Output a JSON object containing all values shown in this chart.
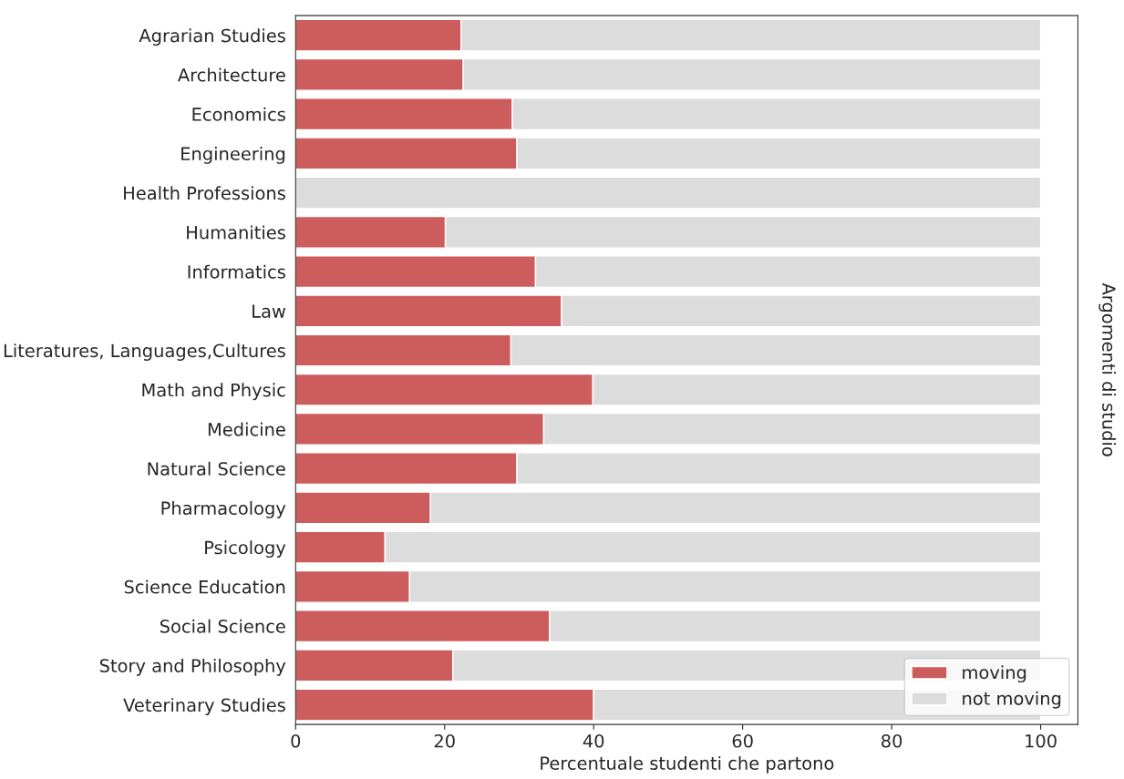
{
  "chart_data": {
    "type": "bar",
    "orientation": "horizontal",
    "stacked": true,
    "xlabel": "Percentuale studenti che partono",
    "ylabel": "Argomenti di studio",
    "categories": [
      "Agrarian Studies",
      "Architecture",
      "Economics",
      "Engineering",
      "Health Professions",
      "Humanities",
      "Informatics",
      "Law",
      "Literatures, Languages,Cultures",
      "Math and Physic",
      "Medicine",
      "Natural Science",
      "Pharmacology",
      "Psicology",
      "Science Education",
      "Social Science",
      "Story and Philosophy",
      "Veterinary Studies"
    ],
    "series": [
      {
        "name": "moving",
        "color": "#cd5c5c",
        "values": [
          22.2,
          22.5,
          29.1,
          29.7,
          0,
          20.1,
          32.2,
          35.7,
          28.9,
          39.9,
          33.3,
          29.7,
          18.1,
          12.0,
          15.3,
          34.1,
          21.1,
          40.0
        ]
      },
      {
        "name": "not moving",
        "color": "#dcdcdc",
        "values": [
          77.8,
          77.5,
          70.9,
          70.3,
          100,
          79.9,
          67.8,
          64.3,
          71.1,
          60.1,
          66.7,
          70.3,
          81.9,
          88.0,
          84.7,
          65.9,
          78.9,
          60.0
        ]
      }
    ],
    "xlim": [
      0,
      105
    ],
    "xticks": [
      0,
      20,
      40,
      60,
      80,
      100
    ],
    "legend": "bottom right",
    "grid": false
  }
}
